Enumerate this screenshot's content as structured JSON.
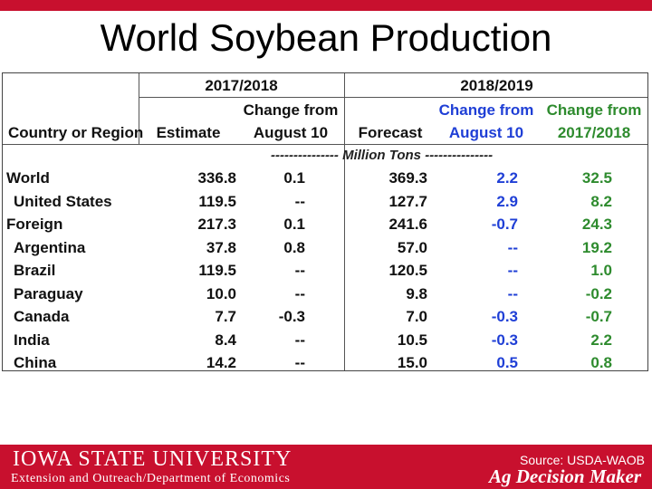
{
  "slide": {
    "title": "World Soybean Production"
  },
  "table": {
    "group_headers": [
      "2017/2018",
      "2018/2019"
    ],
    "col_headers": {
      "country": "Country or Region",
      "estimate": "Estimate",
      "change1_line1": "Change from",
      "change1_line2": "August 10",
      "forecast": "Forecast",
      "change2_line1": "Change from",
      "change2_line2": "August 10",
      "change3_line1": "Change from",
      "change3_line2": "2017/2018"
    },
    "units": "--------------- Million Tons ---------------",
    "rows": [
      {
        "region": "World",
        "estimate": "336.8",
        "change_aug": "0.1",
        "forecast": "369.3",
        "change_aug_1819": "2.2",
        "change_prior": "32.5"
      },
      {
        "region": "United States",
        "estimate": "119.5",
        "change_aug": "--",
        "forecast": "127.7",
        "change_aug_1819": "2.9",
        "change_prior": "8.2"
      },
      {
        "region": "Foreign",
        "estimate": "217.3",
        "change_aug": "0.1",
        "forecast": "241.6",
        "change_aug_1819": "-0.7",
        "change_prior": "24.3"
      },
      {
        "region": "Argentina",
        "estimate": "37.8",
        "change_aug": "0.8",
        "forecast": "57.0",
        "change_aug_1819": "--",
        "change_prior": "19.2"
      },
      {
        "region": "Brazil",
        "estimate": "119.5",
        "change_aug": "--",
        "forecast": "120.5",
        "change_aug_1819": "--",
        "change_prior": "1.0"
      },
      {
        "region": "Paraguay",
        "estimate": "10.0",
        "change_aug": "--",
        "forecast": "9.8",
        "change_aug_1819": "--",
        "change_prior": "-0.2"
      },
      {
        "region": "Canada",
        "estimate": "7.7",
        "change_aug": "-0.3",
        "forecast": "7.0",
        "change_aug_1819": "-0.3",
        "change_prior": "-0.7"
      },
      {
        "region": "India",
        "estimate": "8.4",
        "change_aug": "--",
        "forecast": "10.5",
        "change_aug_1819": "-0.3",
        "change_prior": "2.2"
      },
      {
        "region": "China",
        "estimate": "14.2",
        "change_aug": "--",
        "forecast": "15.0",
        "change_aug_1819": "0.5",
        "change_prior": "0.8"
      }
    ]
  },
  "footer": {
    "university": "IOWA STATE UNIVERSITY",
    "department": "Extension and Outreach/Department of Economics",
    "source": "Source: USDA-WAOB",
    "brand": "Ag Decision Maker"
  },
  "colors": {
    "brand_red": "#c8102e",
    "blue_column": "#1f3fd6",
    "green_column": "#2e8b2e"
  }
}
